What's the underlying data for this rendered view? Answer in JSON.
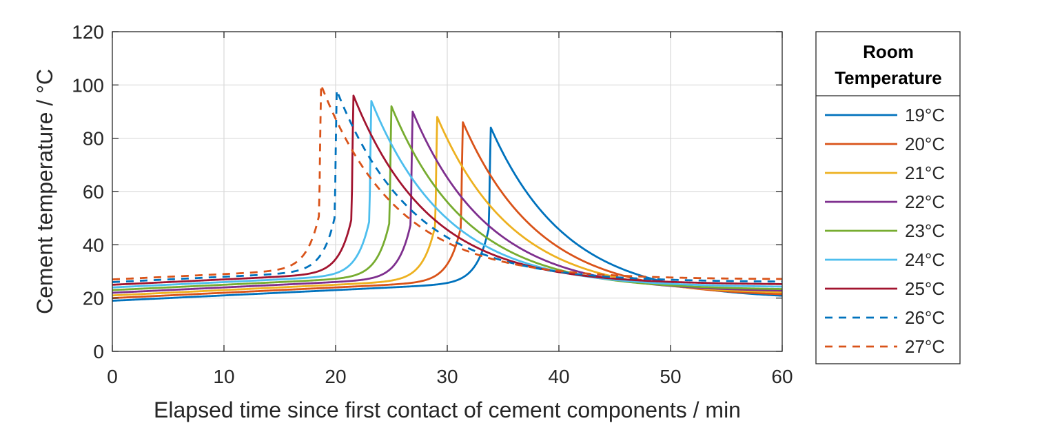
{
  "chart_data": {
    "type": "line",
    "xlabel": "Elapsed time since first contact of cement components / min",
    "ylabel": "Cement temperature / °C",
    "xlim": [
      0,
      60
    ],
    "ylim": [
      0,
      120
    ],
    "xticks": [
      0,
      10,
      20,
      30,
      40,
      50,
      60
    ],
    "yticks": [
      0,
      20,
      40,
      60,
      80,
      100,
      120
    ],
    "grid": true,
    "legend": {
      "placement": "outside-right",
      "title_line1": "Room",
      "title_line2": "Temperature"
    },
    "series": [
      {
        "name": "19°C",
        "color": "#0072BD",
        "dash": "solid",
        "start": 19,
        "peak_x": 33.9,
        "peak_y": 84,
        "end": 19.5
      },
      {
        "name": "20°C",
        "color": "#D95319",
        "dash": "solid",
        "start": 20,
        "peak_x": 31.4,
        "peak_y": 86,
        "end": 20.5
      },
      {
        "name": "21°C",
        "color": "#EDB120",
        "dash": "solid",
        "start": 21,
        "peak_x": 29.1,
        "peak_y": 88,
        "end": 21.5
      },
      {
        "name": "22°C",
        "color": "#7E2F8E",
        "dash": "solid",
        "start": 22,
        "peak_x": 26.9,
        "peak_y": 90,
        "end": 22.3
      },
      {
        "name": "23°C",
        "color": "#77AC30",
        "dash": "solid",
        "start": 23,
        "peak_x": 25.0,
        "peak_y": 92,
        "end": 23.0
      },
      {
        "name": "24°C",
        "color": "#4DBEEE",
        "dash": "solid",
        "start": 24,
        "peak_x": 23.2,
        "peak_y": 94,
        "end": 24.0
      },
      {
        "name": "25°C",
        "color": "#A2142F",
        "dash": "solid",
        "start": 25,
        "peak_x": 21.6,
        "peak_y": 96,
        "end": 25.0
      },
      {
        "name": "26°C",
        "color": "#0072BD",
        "dash": "dashed",
        "start": 26,
        "peak_x": 20.1,
        "peak_y": 98,
        "end": 26.0
      },
      {
        "name": "27°C",
        "color": "#D95319",
        "dash": "dashed",
        "start": 27,
        "peak_x": 18.7,
        "peak_y": 100,
        "end": 27.0
      }
    ]
  }
}
